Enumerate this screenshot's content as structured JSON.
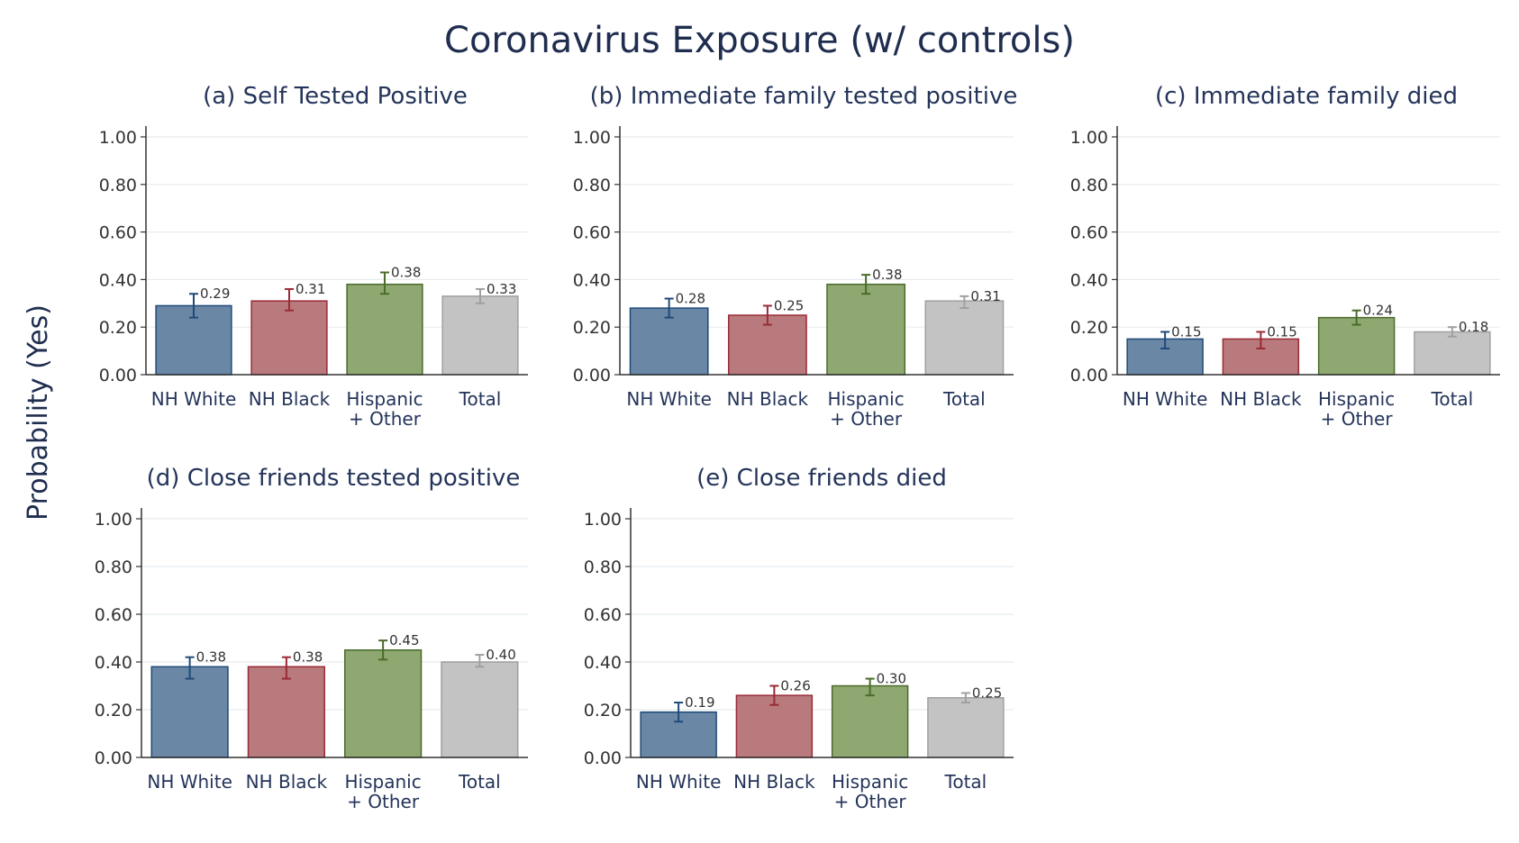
{
  "figure": {
    "title": "Coronavirus Exposure (w/ controls)",
    "ylabel": "Probability (Yes)"
  },
  "colors": {
    "NH White": {
      "fill": "#6a87a5",
      "stroke": "#1f4a78"
    },
    "NH Black": {
      "fill": "#b87a7c",
      "stroke": "#9a2a35"
    },
    "Hispanic + Other": {
      "fill": "#8fa872",
      "stroke": "#4a6b2a"
    },
    "Total": {
      "fill": "#c3c3c3",
      "stroke": "#a0a0a0"
    }
  },
  "chart_data": [
    {
      "type": "bar",
      "title": "(a) Self Tested Positive",
      "categories": [
        "NH White",
        "NH Black",
        "Hispanic + Other",
        "Total"
      ],
      "category_lines": [
        [
          "NH White"
        ],
        [
          "NH Black"
        ],
        [
          "Hispanic",
          "+ Other"
        ],
        [
          "Total"
        ]
      ],
      "values": [
        0.29,
        0.31,
        0.38,
        0.33
      ],
      "value_labels": [
        "0.29",
        "0.31",
        "0.38",
        "0.33"
      ],
      "ci_low": [
        0.24,
        0.27,
        0.34,
        0.3
      ],
      "ci_high": [
        0.34,
        0.36,
        0.43,
        0.36
      ],
      "ylim": [
        0,
        1
      ],
      "yticks": [
        "0.00",
        "0.20",
        "0.40",
        "0.60",
        "0.80",
        "1.00"
      ],
      "grid": true
    },
    {
      "type": "bar",
      "title": "(b) Immediate family tested positive",
      "categories": [
        "NH White",
        "NH Black",
        "Hispanic + Other",
        "Total"
      ],
      "category_lines": [
        [
          "NH White"
        ],
        [
          "NH Black"
        ],
        [
          "Hispanic",
          "+ Other"
        ],
        [
          "Total"
        ]
      ],
      "values": [
        0.28,
        0.25,
        0.38,
        0.31
      ],
      "value_labels": [
        "0.28",
        "0.25",
        "0.38",
        "0.31"
      ],
      "ci_low": [
        0.24,
        0.21,
        0.34,
        0.28
      ],
      "ci_high": [
        0.32,
        0.29,
        0.42,
        0.33
      ],
      "ylim": [
        0,
        1
      ],
      "yticks": [
        "0.00",
        "0.20",
        "0.40",
        "0.60",
        "0.80",
        "1.00"
      ],
      "grid": true
    },
    {
      "type": "bar",
      "title": "(c) Immediate family died",
      "categories": [
        "NH White",
        "NH Black",
        "Hispanic + Other",
        "Total"
      ],
      "category_lines": [
        [
          "NH White"
        ],
        [
          "NH Black"
        ],
        [
          "Hispanic",
          "+ Other"
        ],
        [
          "Total"
        ]
      ],
      "values": [
        0.15,
        0.15,
        0.24,
        0.18
      ],
      "value_labels": [
        "0.15",
        "0.15",
        "0.24",
        "0.18"
      ],
      "ci_low": [
        0.11,
        0.11,
        0.21,
        0.16
      ],
      "ci_high": [
        0.18,
        0.18,
        0.27,
        0.2
      ],
      "ylim": [
        0,
        1
      ],
      "yticks": [
        "0.00",
        "0.20",
        "0.40",
        "0.60",
        "0.80",
        "1.00"
      ],
      "grid": true
    },
    {
      "type": "bar",
      "title": "(d) Close friends tested positive",
      "categories": [
        "NH White",
        "NH Black",
        "Hispanic + Other",
        "Total"
      ],
      "category_lines": [
        [
          "NH White"
        ],
        [
          "NH Black"
        ],
        [
          "Hispanic",
          "+ Other"
        ],
        [
          "Total"
        ]
      ],
      "values": [
        0.38,
        0.38,
        0.45,
        0.4
      ],
      "value_labels": [
        "0.38",
        "0.38",
        "0.45",
        "0.40"
      ],
      "ci_low": [
        0.33,
        0.33,
        0.41,
        0.38
      ],
      "ci_high": [
        0.42,
        0.42,
        0.49,
        0.43
      ],
      "ylim": [
        0,
        1
      ],
      "yticks": [
        "0.00",
        "0.20",
        "0.40",
        "0.60",
        "0.80",
        "1.00"
      ],
      "grid": true
    },
    {
      "type": "bar",
      "title": "(e) Close friends died",
      "categories": [
        "NH White",
        "NH Black",
        "Hispanic + Other",
        "Total"
      ],
      "category_lines": [
        [
          "NH White"
        ],
        [
          "NH Black"
        ],
        [
          "Hispanic",
          "+ Other"
        ],
        [
          "Total"
        ]
      ],
      "values": [
        0.19,
        0.26,
        0.3,
        0.25
      ],
      "value_labels": [
        "0.19",
        "0.26",
        "0.30",
        "0.25"
      ],
      "ci_low": [
        0.15,
        0.22,
        0.26,
        0.23
      ],
      "ci_high": [
        0.23,
        0.3,
        0.33,
        0.27
      ],
      "ylim": [
        0,
        1
      ],
      "yticks": [
        "0.00",
        "0.20",
        "0.40",
        "0.60",
        "0.80",
        "1.00"
      ],
      "grid": true
    }
  ]
}
